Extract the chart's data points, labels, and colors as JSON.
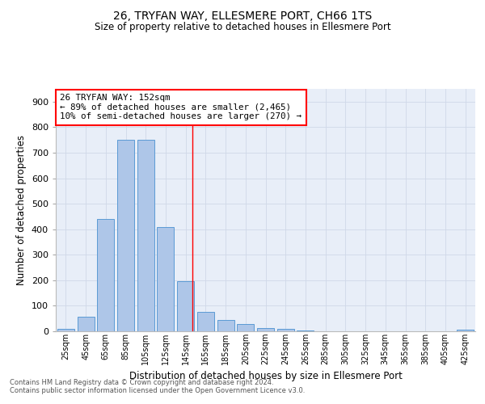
{
  "title1": "26, TRYFAN WAY, ELLESMERE PORT, CH66 1TS",
  "title2": "Size of property relative to detached houses in Ellesmere Port",
  "xlabel": "Distribution of detached houses by size in Ellesmere Port",
  "ylabel": "Number of detached properties",
  "footnote1": "Contains HM Land Registry data © Crown copyright and database right 2024.",
  "footnote2": "Contains public sector information licensed under the Open Government Licence v3.0.",
  "bar_labels": [
    "25sqm",
    "45sqm",
    "65sqm",
    "85sqm",
    "105sqm",
    "125sqm",
    "145sqm",
    "165sqm",
    "185sqm",
    "205sqm",
    "225sqm",
    "245sqm",
    "265sqm",
    "285sqm",
    "305sqm",
    "325sqm",
    "345sqm",
    "365sqm",
    "385sqm",
    "405sqm",
    "425sqm"
  ],
  "bar_values": [
    10,
    58,
    440,
    752,
    752,
    410,
    197,
    75,
    43,
    27,
    12,
    9,
    2,
    0,
    0,
    0,
    0,
    0,
    0,
    0,
    6
  ],
  "bar_color": "#aec6e8",
  "bar_edge_color": "#5b9bd5",
  "grid_color": "#d0d8e8",
  "background_color": "#e8eef8",
  "property_size": 152,
  "property_line_label": "26 TRYFAN WAY: 152sqm",
  "annotation_line1": "← 89% of detached houses are smaller (2,465)",
  "annotation_line2": "10% of semi-detached houses are larger (270) →",
  "annotation_box_color": "white",
  "annotation_box_edge": "red",
  "vline_color": "red",
  "ylim": [
    0,
    950
  ],
  "yticks": [
    0,
    100,
    200,
    300,
    400,
    500,
    600,
    700,
    800,
    900
  ]
}
